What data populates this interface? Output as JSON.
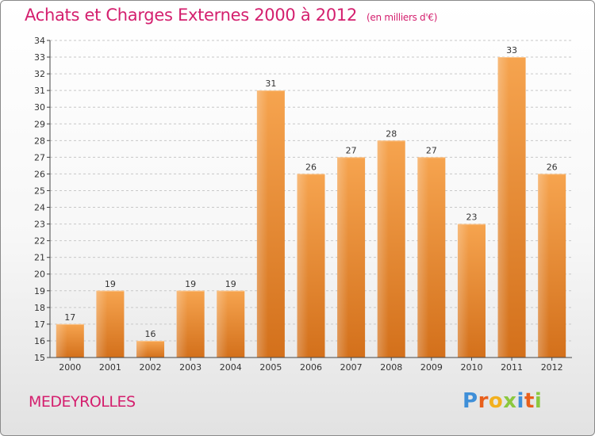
{
  "header": {
    "title": "Achats et Charges Externes 2000 à 2012",
    "unit": "(en milliers d'€)"
  },
  "footer": {
    "commune": "MEDEYROLLES",
    "brand": "Proxiti"
  },
  "colors": {
    "title": "#d41f6e",
    "bar_light": "#f6a44f",
    "bar_dark": "#d3701b",
    "brand_letters": [
      "#3f8fd8",
      "#e85f1c",
      "#f2b01e",
      "#8bc83f",
      "#3f8fd8",
      "#e85f1c",
      "#8bc83f"
    ]
  },
  "chart_data": {
    "type": "bar",
    "title": "Achats et Charges Externes 2000 à 2012",
    "subtitle": "(en milliers d'€)",
    "categories": [
      "2000",
      "2001",
      "2002",
      "2003",
      "2004",
      "2005",
      "2006",
      "2007",
      "2008",
      "2009",
      "2010",
      "2011",
      "2012"
    ],
    "values": [
      17,
      19,
      16,
      19,
      19,
      31,
      26,
      27,
      28,
      27,
      23,
      33,
      26
    ],
    "ylim": [
      15,
      34
    ],
    "yticks": [
      15,
      16,
      17,
      18,
      19,
      20,
      21,
      22,
      23,
      24,
      25,
      26,
      27,
      28,
      29,
      30,
      31,
      32,
      33,
      34
    ],
    "grid": "horizontal dashed"
  }
}
